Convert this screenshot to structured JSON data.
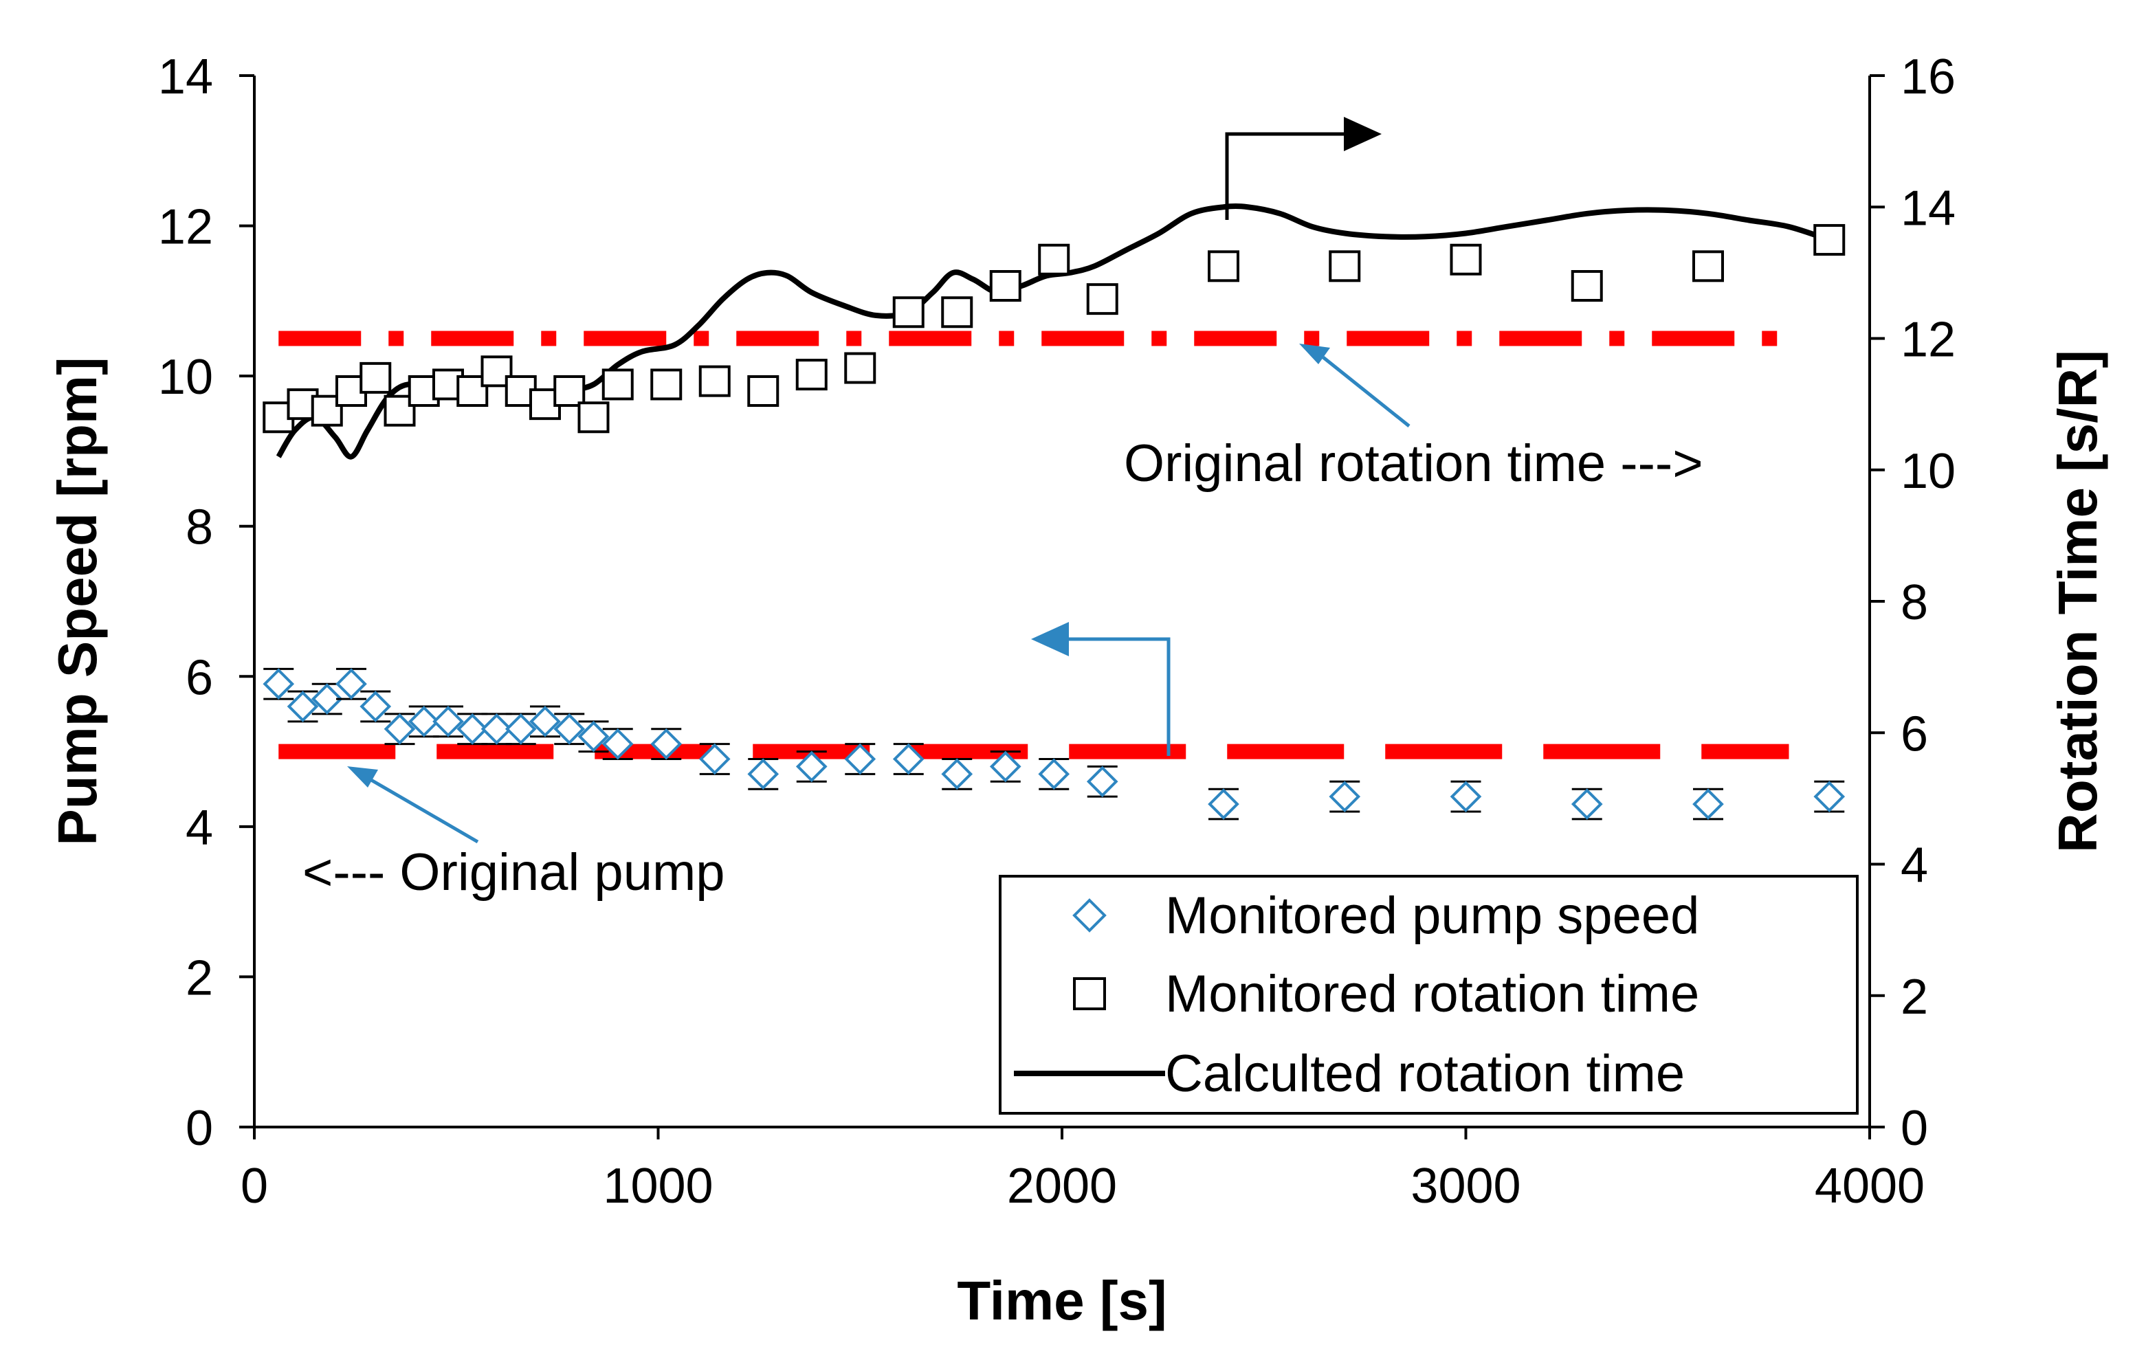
{
  "chart_data": {
    "type": "scatter",
    "xlabel": "Time [s]",
    "ylabel_left": "Pump Speed [rpm]",
    "ylabel_right": "Rotation Time [s/R]",
    "xlim": [
      0,
      4000
    ],
    "ylim_left": [
      0,
      14
    ],
    "ylim_right": [
      0,
      16
    ],
    "x_ticks": [
      "0",
      "1000",
      "2000",
      "3000",
      "4000"
    ],
    "y_ticks_left": [
      "0",
      "2",
      "4",
      "6",
      "8",
      "10",
      "12",
      "14"
    ],
    "y_ticks_right": [
      "0",
      "2",
      "4",
      "6",
      "8",
      "10",
      "12",
      "14",
      "16"
    ],
    "grid": false,
    "legend_position": "bottom-right",
    "series": [
      {
        "name": "Monitored pump speed",
        "axis": "left",
        "marker": "diamond",
        "color": "#2e86c1",
        "x": [
          60,
          120,
          180,
          240,
          300,
          360,
          420,
          480,
          540,
          600,
          660,
          720,
          780,
          840,
          900,
          1020,
          1140,
          1260,
          1380,
          1500,
          1620,
          1740,
          1860,
          1980,
          2100,
          2400,
          2700,
          3000,
          3300,
          3600,
          3900
        ],
        "y": [
          5.9,
          5.6,
          5.7,
          5.9,
          5.6,
          5.3,
          5.4,
          5.4,
          5.3,
          5.3,
          5.3,
          5.4,
          5.3,
          5.2,
          5.1,
          5.1,
          4.9,
          4.7,
          4.8,
          4.9,
          4.9,
          4.7,
          4.8,
          4.7,
          4.6,
          4.3,
          4.4,
          4.4,
          4.3,
          4.3,
          4.4
        ],
        "error": 0.2
      },
      {
        "name": "Monitored rotation time",
        "axis": "right",
        "marker": "square",
        "color": "#000000",
        "x": [
          60,
          120,
          180,
          240,
          300,
          360,
          420,
          480,
          540,
          600,
          660,
          720,
          780,
          840,
          900,
          1020,
          1140,
          1260,
          1380,
          1500,
          1620,
          1740,
          1860,
          1980,
          2100,
          2400,
          2700,
          3000,
          3300,
          3600,
          3900
        ],
        "y": [
          10.8,
          11.0,
          10.9,
          11.2,
          11.4,
          10.9,
          11.2,
          11.3,
          11.2,
          11.5,
          11.2,
          11.0,
          11.2,
          10.8,
          11.3,
          11.3,
          11.35,
          11.2,
          11.45,
          11.55,
          12.4,
          12.4,
          12.8,
          13.2,
          12.6,
          13.1,
          13.1,
          13.2,
          12.8,
          13.1,
          13.5
        ]
      },
      {
        "name": "Calculted rotation time",
        "axis": "right",
        "line_style": "solid",
        "color": "#000000",
        "x": [
          60,
          100,
          150,
          200,
          240,
          280,
          330,
          380,
          440,
          500,
          560,
          620,
          680,
          720,
          780,
          840,
          900,
          960,
          1040,
          1100,
          1160,
          1220,
          1270,
          1320,
          1380,
          1460,
          1540,
          1620,
          1680,
          1730,
          1780,
          1840,
          1900,
          1960,
          2020,
          2080,
          2160,
          2240,
          2320,
          2400,
          2460,
          2540,
          2620,
          2700,
          2800,
          2900,
          3000,
          3100,
          3200,
          3300,
          3400,
          3500,
          3600,
          3700,
          3800,
          3900
        ],
        "y": [
          10.2,
          10.6,
          10.8,
          10.5,
          10.2,
          10.6,
          11.1,
          11.3,
          11.2,
          11.4,
          11.3,
          11.35,
          11.2,
          11.1,
          11.2,
          11.3,
          11.6,
          11.8,
          11.9,
          12.2,
          12.6,
          12.9,
          13.0,
          12.95,
          12.7,
          12.5,
          12.35,
          12.4,
          12.7,
          13.0,
          12.9,
          12.7,
          12.8,
          12.95,
          13.0,
          13.1,
          13.35,
          13.6,
          13.9,
          14.0,
          14.0,
          13.9,
          13.7,
          13.6,
          13.55,
          13.55,
          13.6,
          13.7,
          13.8,
          13.9,
          13.95,
          13.95,
          13.9,
          13.8,
          13.7,
          13.5
        ]
      },
      {
        "name": "Original rotation time",
        "axis": "right",
        "line_style": "dash-dot",
        "color": "#ff0000",
        "x": [
          60,
          3800
        ],
        "y": [
          12.0,
          12.0
        ]
      },
      {
        "name": "Original pump",
        "axis": "left",
        "line_style": "dashed",
        "color": "#ff0000",
        "x": [
          60,
          3800
        ],
        "y": [
          5.0,
          5.0
        ]
      }
    ],
    "annotations": [
      {
        "text": "Original rotation time --->",
        "points_to": "Original rotation time"
      },
      {
        "text": "<--- Original pump",
        "points_to": "Original pump"
      }
    ],
    "axis_arrows": [
      {
        "series": "Calculted rotation time",
        "direction": "right"
      },
      {
        "series": "Monitored pump speed",
        "direction": "left"
      }
    ]
  },
  "colors": {
    "pump_marker": "#2e86c1",
    "annotation_arrow": "#2e86c1",
    "reference_line": "#ff0000",
    "axis": "#000000"
  }
}
